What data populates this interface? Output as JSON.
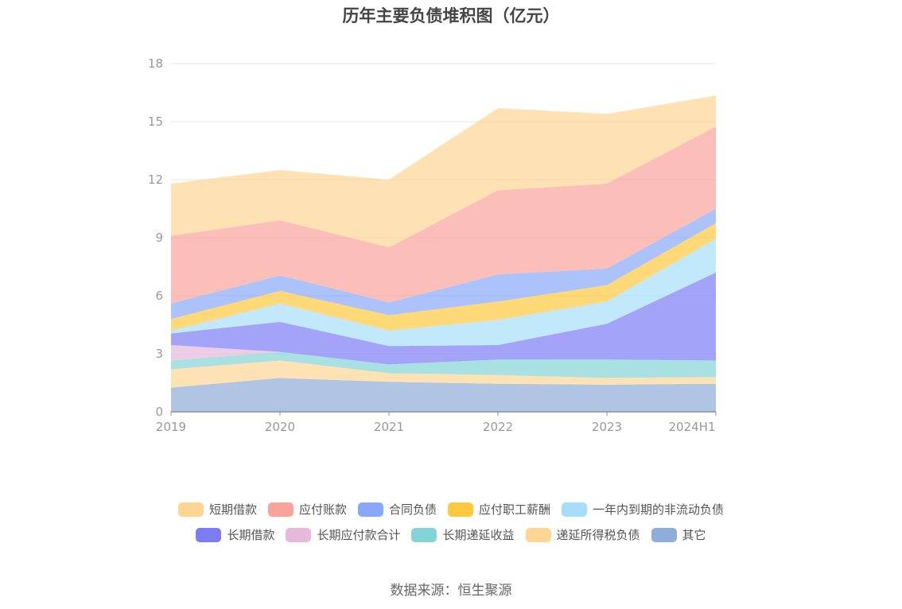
{
  "chart_data": {
    "type": "area",
    "stacked": true,
    "title": "历年主要负债堆积图（亿元）",
    "categories": [
      "2019",
      "2020",
      "2021",
      "2022",
      "2023",
      "2024H1"
    ],
    "ylim": [
      0,
      18
    ],
    "yticks": [
      "0",
      "3",
      "6",
      "9",
      "12",
      "15",
      "18"
    ],
    "grid": true,
    "legend_position": "bottom",
    "series": [
      {
        "name": "其它",
        "color": "#8fadd9",
        "values": [
          1.25,
          1.75,
          1.55,
          1.45,
          1.4,
          1.45
        ]
      },
      {
        "name": "递延所得税负债",
        "color": "#fdd594",
        "values": [
          0.95,
          0.9,
          0.45,
          0.45,
          0.35,
          0.35
        ]
      },
      {
        "name": "长期递延收益",
        "color": "#85d3d6",
        "values": [
          0.45,
          0.45,
          0.45,
          0.8,
          0.95,
          0.85
        ]
      },
      {
        "name": "长期应付款合计",
        "color": "#e6b8dc",
        "values": [
          0.8,
          0.0,
          0.0,
          0.0,
          0.0,
          0.0
        ]
      },
      {
        "name": "长期借款",
        "color": "#7c7cf5",
        "values": [
          0.6,
          1.55,
          0.95,
          0.75,
          1.85,
          4.55
        ]
      },
      {
        "name": "一年内到期的非流动负债",
        "color": "#a6defa",
        "values": [
          0.15,
          0.95,
          0.8,
          1.3,
          1.15,
          1.75
        ]
      },
      {
        "name": "应付职工薪酬",
        "color": "#ffc83d",
        "values": [
          0.6,
          0.65,
          0.8,
          0.95,
          0.85,
          0.8
        ]
      },
      {
        "name": "合同负债",
        "color": "#88a8fa",
        "values": [
          0.8,
          0.8,
          0.65,
          1.4,
          0.85,
          0.75
        ]
      },
      {
        "name": "应付账款",
        "color": "#f9a39b",
        "values": [
          3.5,
          2.85,
          2.85,
          4.35,
          4.4,
          4.25
        ]
      },
      {
        "name": "短期借款",
        "color": "#fdd594",
        "values": [
          2.7,
          2.6,
          3.5,
          4.25,
          3.6,
          1.6
        ]
      }
    ],
    "legend_order": [
      "短期借款",
      "应付账款",
      "合同负债",
      "应付职工薪酬",
      "一年内到期的非流动负债",
      "长期借款",
      "长期应付款合计",
      "长期递延收益",
      "递延所得税负债",
      "其它"
    ]
  },
  "source": "数据来源：恒生聚源"
}
